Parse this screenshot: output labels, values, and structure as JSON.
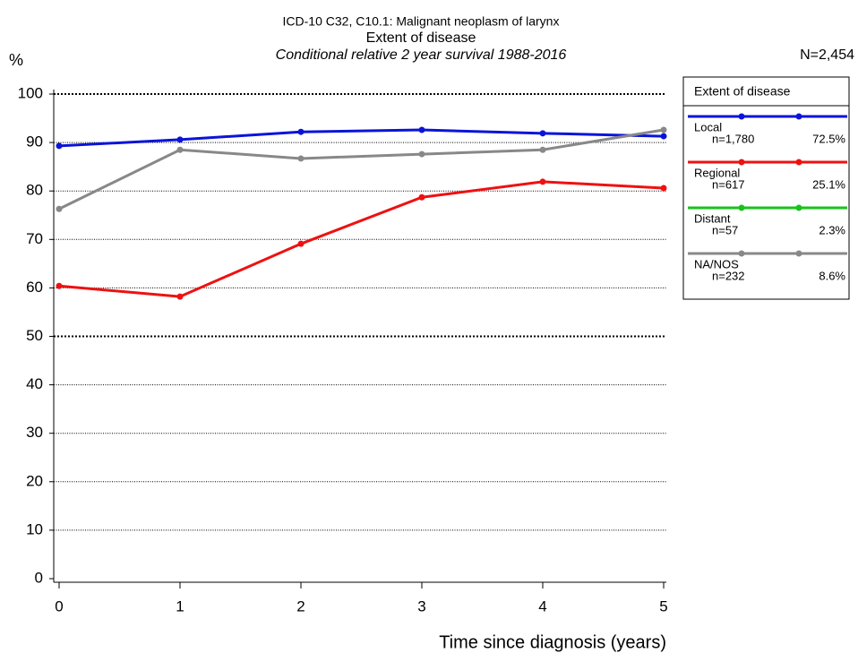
{
  "chart_data": {
    "type": "line",
    "title": "ICD-10 C32, C10.1: Malignant neoplasm of larynx",
    "subtitle": "Extent of disease",
    "caption": "Conditional relative 2 year survival 1988-2016",
    "y_label": "%",
    "x_label": "Time since diagnosis (years)",
    "total_label": "N=2,454",
    "legend_title": "Extent of disease",
    "legend": "right",
    "grid": true,
    "x": [
      0,
      1,
      2,
      3,
      4,
      5
    ],
    "xlim": [
      0,
      5
    ],
    "xticks": [
      0,
      1,
      2,
      3,
      4,
      5
    ],
    "ylim": [
      0,
      100
    ],
    "yticks": [
      0,
      10,
      20,
      30,
      40,
      50,
      60,
      70,
      80,
      90,
      100
    ],
    "series": [
      {
        "name": "Local",
        "n_label": "n=1,780",
        "share_label": "72.5%",
        "color": "#0a14d8",
        "values": [
          89.3,
          90.6,
          92.2,
          92.6,
          91.9,
          91.3
        ]
      },
      {
        "name": "Regional",
        "n_label": "n=617",
        "share_label": "25.1%",
        "color": "#ee1111",
        "values": [
          60.4,
          58.2,
          69.1,
          78.7,
          81.9,
          80.6
        ]
      },
      {
        "name": "Distant",
        "n_label": "n=57",
        "share_label": "2.3%",
        "color": "#19c319",
        "values": [
          null,
          null,
          null,
          null,
          null,
          null
        ]
      },
      {
        "name": "NA/NOS",
        "n_label": "n=232",
        "share_label": "8.6%",
        "color": "#888888",
        "values": [
          76.3,
          88.5,
          86.7,
          87.6,
          88.5,
          92.6
        ]
      }
    ]
  }
}
